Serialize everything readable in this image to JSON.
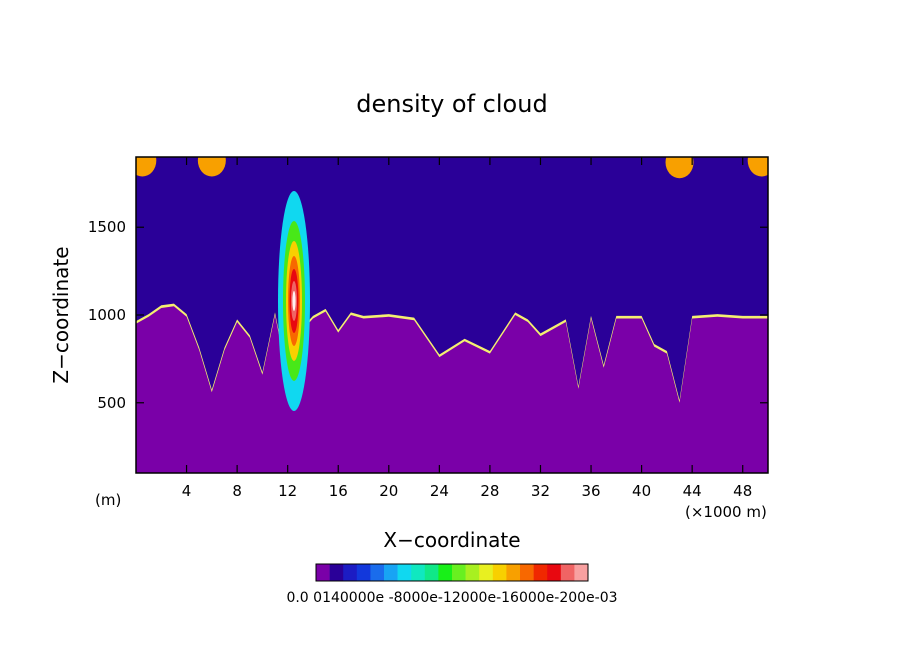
{
  "chart_data": {
    "type": "heatmap",
    "title": "density of cloud",
    "xlabel": "X−coordinate",
    "ylabel": "Z−coordinate",
    "x_unit_left": "(m)",
    "x_unit_right": "(×1000 m)",
    "xlim": [
      0,
      50
    ],
    "ylim": [
      100,
      1900
    ],
    "xticks": [
      4,
      8,
      12,
      16,
      20,
      24,
      28,
      32,
      36,
      40,
      44,
      48
    ],
    "yticks": [
      500,
      1000,
      1500
    ],
    "colorbar": {
      "levels_text": "0.0 0140000e -8000e-12000e-16000e-200e-03",
      "colors": [
        "#7a00a8",
        "#2a0098",
        "#1c1cc4",
        "#1238dc",
        "#1a6cec",
        "#18a4f4",
        "#10d8f0",
        "#10e8c0",
        "#10e888",
        "#18f018",
        "#68f020",
        "#a8f020",
        "#e8f020",
        "#f8d000",
        "#f8a000",
        "#f86800",
        "#f02800",
        "#e80810",
        "#f06464",
        "#f8a0a0"
      ]
    },
    "cloud_base_profile": {
      "x": [
        0,
        1,
        2,
        3,
        4,
        5,
        6,
        7,
        8,
        9,
        10,
        11,
        12,
        13,
        14,
        15,
        16,
        17,
        18,
        20,
        22,
        24,
        26,
        28,
        30,
        31,
        32,
        34,
        35,
        36,
        37,
        38,
        40,
        41,
        42,
        43,
        44,
        46,
        48,
        50
      ],
      "z": [
        950,
        990,
        1040,
        1050,
        990,
        800,
        560,
        800,
        960,
        870,
        660,
        1000,
        640,
        900,
        980,
        1020,
        900,
        1000,
        980,
        990,
        970,
        760,
        850,
        780,
        1000,
        960,
        880,
        960,
        580,
        980,
        700,
        980,
        980,
        820,
        780,
        500,
        980,
        990,
        980,
        980
      ]
    },
    "max_core": {
      "x": 12.5,
      "z": 1080
    }
  }
}
